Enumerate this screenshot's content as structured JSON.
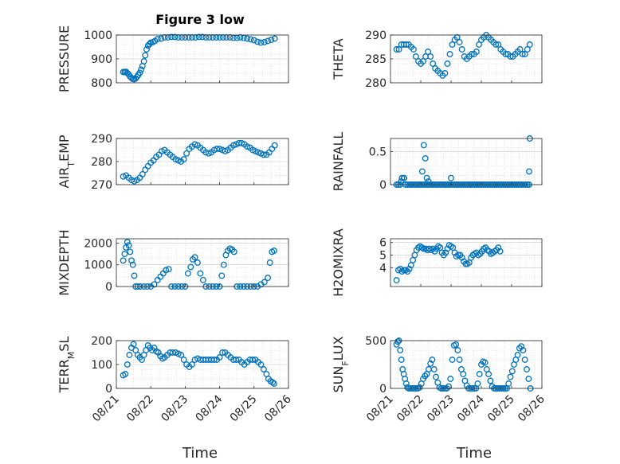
{
  "figure": {
    "title": "Figure 3 low"
  },
  "colors": {
    "marker": "#0072BD",
    "axis": "#262626",
    "grid": "#d9d9d9",
    "background": "#ffffff"
  },
  "chart_data": [
    {
      "type": "scatter",
      "id": "pressure",
      "ylabel": "PRESSURE",
      "ylim": [
        800,
        1000
      ],
      "yticks": [
        800,
        900,
        1000
      ],
      "xlim": [
        0,
        5
      ],
      "xticks": [
        0,
        1,
        2,
        3,
        4,
        5
      ],
      "xticklabels": [
        "08/21",
        "08/22",
        "08/23",
        "08/24",
        "08/25",
        "08/26"
      ],
      "show_xticklabels": false,
      "grid": true,
      "x": [
        0.2,
        0.24,
        0.28,
        0.32,
        0.36,
        0.4,
        0.44,
        0.48,
        0.52,
        0.56,
        0.6,
        0.64,
        0.68,
        0.72,
        0.76,
        0.8,
        0.84,
        0.88,
        0.92,
        0.96,
        1.0,
        1.06,
        1.12,
        1.2,
        1.3,
        1.4,
        1.5,
        1.6,
        1.7,
        1.8,
        1.9,
        2.0,
        2.1,
        2.2,
        2.3,
        2.4,
        2.5,
        2.6,
        2.7,
        2.8,
        2.9,
        3.0,
        3.1,
        3.2,
        3.3,
        3.4,
        3.5,
        3.6,
        3.7,
        3.8,
        3.9,
        4.0,
        4.1,
        4.2,
        4.3,
        4.4,
        4.5,
        4.6
      ],
      "y": [
        845,
        845,
        846,
        840,
        835,
        826,
        820,
        816,
        815,
        818,
        825,
        833,
        842,
        855,
        870,
        890,
        915,
        940,
        955,
        962,
        968,
        970,
        975,
        983,
        985,
        990,
        990,
        992,
        992,
        990,
        990,
        990,
        990,
        990,
        990,
        992,
        992,
        990,
        990,
        990,
        990,
        990,
        990,
        990,
        990,
        988,
        988,
        990,
        988,
        985,
        982,
        978,
        972,
        968,
        970,
        975,
        980,
        985
      ]
    },
    {
      "type": "scatter",
      "id": "theta",
      "ylabel": "THETA",
      "ylim": [
        280,
        290
      ],
      "yticks": [
        280,
        285,
        290
      ],
      "xlim": [
        0,
        5
      ],
      "xticks": [
        0,
        1,
        2,
        3,
        4,
        5
      ],
      "xticklabels": [
        "08/21",
        "08/22",
        "08/23",
        "08/24",
        "08/25",
        "08/26"
      ],
      "show_xticklabels": false,
      "grid": true,
      "x": [
        0.2,
        0.28,
        0.36,
        0.44,
        0.52,
        0.6,
        0.68,
        0.76,
        0.84,
        0.92,
        1.0,
        1.08,
        1.16,
        1.24,
        1.32,
        1.4,
        1.48,
        1.56,
        1.64,
        1.72,
        1.8,
        1.88,
        1.96,
        2.04,
        2.12,
        2.2,
        2.28,
        2.36,
        2.44,
        2.52,
        2.6,
        2.68,
        2.76,
        2.84,
        2.92,
        3.0,
        3.08,
        3.16,
        3.24,
        3.32,
        3.4,
        3.48,
        3.56,
        3.64,
        3.72,
        3.8,
        3.88,
        3.96,
        4.04,
        4.12,
        4.2,
        4.28,
        4.36,
        4.44,
        4.52,
        4.6
      ],
      "y": [
        287,
        287,
        288,
        288,
        288,
        288,
        287.5,
        287,
        285.5,
        284.5,
        284,
        284.5,
        285.5,
        286.5,
        285.5,
        284,
        283,
        282.5,
        282,
        281.5,
        282,
        284,
        286,
        288,
        289,
        289.5,
        288.5,
        287,
        285.5,
        285,
        285.5,
        286,
        286,
        286.5,
        288,
        289,
        289.5,
        290,
        289.5,
        289,
        288.5,
        288,
        288,
        287,
        286.5,
        286,
        286,
        285.5,
        285.5,
        286,
        286.5,
        287,
        286,
        286,
        287,
        288
      ]
    },
    {
      "type": "scatter",
      "id": "air_temp",
      "ylabel": "AIR_TEMP",
      "ylabel_main": "AIR",
      "ylabel_sub": "T",
      "ylabel_rest": "EMP",
      "ylim": [
        270,
        290
      ],
      "yticks": [
        270,
        280,
        290
      ],
      "xlim": [
        0,
        5
      ],
      "xticks": [
        0,
        1,
        2,
        3,
        4,
        5
      ],
      "xticklabels": [
        "08/21",
        "08/22",
        "08/23",
        "08/24",
        "08/25",
        "08/26"
      ],
      "show_xticklabels": false,
      "grid": true,
      "x": [
        0.2,
        0.28,
        0.36,
        0.44,
        0.52,
        0.6,
        0.68,
        0.76,
        0.84,
        0.92,
        1.0,
        1.08,
        1.16,
        1.24,
        1.32,
        1.4,
        1.48,
        1.56,
        1.64,
        1.72,
        1.8,
        1.88,
        1.96,
        2.04,
        2.12,
        2.2,
        2.28,
        2.36,
        2.44,
        2.52,
        2.6,
        2.68,
        2.76,
        2.84,
        2.92,
        3.0,
        3.08,
        3.16,
        3.24,
        3.32,
        3.4,
        3.48,
        3.56,
        3.64,
        3.72,
        3.8,
        3.88,
        3.96,
        4.04,
        4.12,
        4.2,
        4.28,
        4.36,
        4.44,
        4.52,
        4.6
      ],
      "y": [
        273.5,
        274,
        273,
        272,
        271.5,
        272,
        273,
        274.5,
        276.5,
        278,
        279.5,
        280.5,
        282,
        283,
        284.5,
        285,
        284,
        283,
        282,
        281,
        280.5,
        280,
        281,
        283.5,
        285.5,
        286.5,
        287.5,
        287,
        286,
        285,
        284,
        283.5,
        284,
        285,
        285.5,
        285.5,
        285,
        284.5,
        285,
        286,
        287,
        287.5,
        288,
        288,
        287.5,
        286.5,
        286,
        285,
        284.5,
        284,
        283.5,
        283,
        283,
        284,
        285.5,
        287
      ]
    },
    {
      "type": "scatter",
      "id": "rainfall",
      "ylabel": "RAINFALL",
      "ylim": [
        0,
        0.7
      ],
      "yticks": [
        0,
        0.5
      ],
      "yticklabels": [
        "0",
        "0.5"
      ],
      "xlim": [
        0,
        5
      ],
      "xticks": [
        0,
        1,
        2,
        3,
        4,
        5
      ],
      "xticklabels": [
        "08/21",
        "08/22",
        "08/23",
        "08/24",
        "08/25",
        "08/26"
      ],
      "show_xticklabels": false,
      "grid": true,
      "x": [
        0.2,
        0.26,
        0.32,
        0.38,
        0.44,
        0.5,
        0.56,
        0.62,
        0.68,
        0.74,
        0.8,
        0.86,
        0.92,
        0.98,
        1.04,
        1.1,
        1.16,
        1.22,
        1.28,
        1.34,
        1.4,
        1.46,
        1.52,
        1.58,
        1.64,
        1.7,
        1.76,
        1.82,
        1.88,
        1.94,
        2.0,
        2.06,
        2.12,
        2.18,
        2.24,
        2.3,
        2.36,
        2.42,
        2.48,
        2.54,
        2.6,
        2.66,
        2.72,
        2.78,
        2.84,
        2.9,
        2.96,
        3.02,
        3.08,
        3.14,
        3.2,
        3.26,
        3.32,
        3.38,
        3.44,
        3.5,
        3.56,
        3.62,
        3.68,
        3.74,
        3.8,
        3.86,
        3.92,
        3.98,
        4.04,
        4.1,
        4.16,
        4.22,
        4.28,
        4.34,
        4.4,
        4.46,
        4.52,
        4.58,
        4.6,
        4.58,
        1.05,
        1.1,
        1.15,
        1.2,
        0.35,
        0.45,
        2.0,
        1.25
      ],
      "y": [
        0,
        0,
        0,
        0.1,
        0.1,
        0,
        0,
        0,
        0,
        0,
        0,
        0,
        0,
        0,
        0,
        0,
        0,
        0,
        0,
        0,
        0,
        0,
        0,
        0,
        0,
        0,
        0,
        0,
        0,
        0,
        0,
        0,
        0,
        0,
        0,
        0,
        0,
        0,
        0,
        0,
        0,
        0,
        0,
        0,
        0,
        0,
        0,
        0,
        0,
        0,
        0,
        0,
        0,
        0,
        0,
        0,
        0,
        0,
        0,
        0,
        0,
        0,
        0,
        0,
        0,
        0,
        0,
        0,
        0,
        0,
        0,
        0,
        0,
        0,
        0.7,
        0.2,
        0.2,
        0.6,
        0.4,
        0.1,
        0.05,
        0.1,
        0.1,
        0.05
      ]
    },
    {
      "type": "scatter",
      "id": "mixdepth",
      "ylabel": "MIXDEPTH",
      "ylim": [
        0,
        2200
      ],
      "yticks": [
        0,
        1000,
        2000
      ],
      "xlim": [
        0,
        5
      ],
      "xticks": [
        0,
        1,
        2,
        3,
        4,
        5
      ],
      "xticklabels": [
        "08/21",
        "08/22",
        "08/23",
        "08/24",
        "08/25",
        "08/26"
      ],
      "show_xticklabels": false,
      "grid": true,
      "x": [
        0.2,
        0.24,
        0.28,
        0.32,
        0.36,
        0.4,
        0.44,
        0.48,
        0.52,
        0.56,
        0.62,
        0.7,
        0.8,
        0.9,
        1.0,
        1.1,
        1.2,
        1.28,
        1.36,
        1.44,
        1.52,
        1.6,
        1.7,
        1.8,
        1.9,
        2.0,
        2.08,
        2.16,
        2.22,
        2.28,
        2.36,
        2.44,
        2.52,
        2.6,
        2.7,
        2.8,
        2.9,
        3.0,
        3.06,
        3.12,
        3.18,
        3.24,
        3.3,
        3.36,
        3.42,
        3.5,
        3.6,
        3.7,
        3.8,
        3.9,
        4.0,
        4.1,
        4.2,
        4.3,
        4.4,
        4.46,
        4.52,
        4.58
      ],
      "y": [
        1200,
        1500,
        1800,
        2050,
        1900,
        1600,
        1200,
        1000,
        500,
        0,
        0,
        0,
        0,
        0,
        0,
        100,
        300,
        450,
        600,
        750,
        800,
        0,
        0,
        0,
        0,
        0,
        600,
        900,
        1250,
        1350,
        1100,
        600,
        300,
        0,
        0,
        0,
        0,
        0,
        500,
        1000,
        1450,
        1650,
        1750,
        1700,
        1600,
        0,
        0,
        0,
        0,
        0,
        0,
        0,
        100,
        200,
        400,
        1100,
        1600,
        1650
      ]
    },
    {
      "type": "scatter",
      "id": "h2omixra",
      "ylabel": "H2OMIXRA",
      "ylim": [
        2.5,
        6.3
      ],
      "yticks": [
        4,
        5,
        6
      ],
      "xlim": [
        0,
        5
      ],
      "xticks": [
        0,
        1,
        2,
        3,
        4,
        5
      ],
      "xticklabels": [
        "08/21",
        "08/22",
        "08/23",
        "08/24",
        "08/25",
        "08/26"
      ],
      "show_xticklabels": false,
      "grid": true,
      "x": [
        0.2,
        0.26,
        0.32,
        0.38,
        0.44,
        0.5,
        0.56,
        0.62,
        0.68,
        0.74,
        0.8,
        0.86,
        0.92,
        0.98,
        1.04,
        1.1,
        1.16,
        1.22,
        1.28,
        1.34,
        1.4,
        1.46,
        1.52,
        1.58,
        1.64,
        1.7,
        1.76,
        1.82,
        1.88,
        1.94,
        2.0,
        2.06,
        2.12,
        2.18,
        2.24,
        2.3,
        2.36,
        2.42,
        2.48,
        2.54,
        2.6,
        2.66,
        2.72,
        2.78,
        2.84,
        2.9,
        2.96,
        3.02,
        3.08,
        3.14,
        3.2,
        3.26,
        3.32,
        3.38,
        3.44,
        3.5,
        3.56,
        3.62
      ],
      "y": [
        3,
        3.8,
        3.9,
        3.7,
        3.8,
        3.8,
        3.7,
        3.9,
        4.2,
        4.6,
        5.0,
        5.4,
        5.6,
        5.7,
        5.6,
        5.5,
        5.5,
        5.4,
        5.5,
        5.4,
        5.5,
        5.3,
        5.5,
        5.7,
        5.6,
        5.2,
        5.0,
        5.2,
        5.5,
        5.8,
        5.7,
        5.6,
        5.2,
        4.9,
        5.0,
        5.0,
        4.8,
        4.5,
        4.3,
        4.3,
        4.4,
        4.8,
        5.0,
        5.1,
        5.2,
        5.0,
        5.1,
        5.3,
        5.5,
        5.6,
        5.4,
        5.3,
        5.1,
        5.2,
        5.3,
        5.4,
        5.6,
        5.3
      ]
    },
    {
      "type": "scatter",
      "id": "terr_msl",
      "ylabel": "TERR_MSL",
      "ylabel_main": "TERR",
      "ylabel_sub": "M",
      "ylabel_rest": "SL",
      "ylim": [
        0,
        200
      ],
      "yticks": [
        0,
        100,
        200
      ],
      "xlim": [
        0,
        5
      ],
      "xticks": [
        0,
        1,
        2,
        3,
        4,
        5
      ],
      "xticklabels": [
        "08/21",
        "08/22",
        "08/23",
        "08/24",
        "08/25",
        "08/26"
      ],
      "show_xticklabels": true,
      "grid": true,
      "x": [
        0.2,
        0.26,
        0.32,
        0.38,
        0.44,
        0.5,
        0.56,
        0.62,
        0.68,
        0.74,
        0.8,
        0.86,
        0.92,
        0.98,
        1.04,
        1.1,
        1.16,
        1.22,
        1.28,
        1.34,
        1.4,
        1.48,
        1.56,
        1.64,
        1.72,
        1.8,
        1.88,
        1.96,
        2.04,
        2.12,
        2.2,
        2.28,
        2.36,
        2.44,
        2.52,
        2.6,
        2.68,
        2.76,
        2.84,
        2.92,
        3.0,
        3.08,
        3.16,
        3.24,
        3.32,
        3.4,
        3.48,
        3.56,
        3.64,
        3.72,
        3.8,
        3.88,
        3.96,
        4.04,
        4.12,
        4.2,
        4.28,
        4.36,
        4.42,
        4.48,
        4.54,
        4.58
      ],
      "y": [
        55,
        60,
        100,
        140,
        170,
        185,
        160,
        140,
        130,
        120,
        140,
        160,
        180,
        170,
        160,
        170,
        155,
        150,
        135,
        125,
        130,
        140,
        150,
        150,
        150,
        145,
        140,
        120,
        100,
        90,
        100,
        120,
        125,
        120,
        120,
        120,
        120,
        120,
        120,
        120,
        130,
        150,
        150,
        140,
        130,
        120,
        120,
        120,
        110,
        100,
        110,
        120,
        120,
        120,
        110,
        100,
        80,
        60,
        40,
        30,
        25,
        20
      ]
    },
    {
      "type": "scatter",
      "id": "sun_flux",
      "ylabel": "SUN_FLUX",
      "ylabel_main": "SUN",
      "ylabel_sub": "F",
      "ylabel_rest": "LUX",
      "ylim": [
        0,
        500
      ],
      "yticks": [
        0,
        500
      ],
      "xlim": [
        0,
        5
      ],
      "xticks": [
        0,
        1,
        2,
        3,
        4,
        5
      ],
      "xticklabels": [
        "08/21",
        "08/22",
        "08/23",
        "08/24",
        "08/25",
        "08/26"
      ],
      "show_xticklabels": true,
      "grid": true,
      "x": [
        0.2,
        0.24,
        0.28,
        0.32,
        0.36,
        0.4,
        0.44,
        0.48,
        0.52,
        0.56,
        0.6,
        0.66,
        0.72,
        0.78,
        0.84,
        0.9,
        0.96,
        1.02,
        1.08,
        1.14,
        1.2,
        1.26,
        1.32,
        1.38,
        1.44,
        1.5,
        1.56,
        1.62,
        1.68,
        1.74,
        1.8,
        1.86,
        1.92,
        1.98,
        2.04,
        2.1,
        2.16,
        2.22,
        2.28,
        2.34,
        2.4,
        2.46,
        2.52,
        2.58,
        2.64,
        2.7,
        2.76,
        2.82,
        2.88,
        2.94,
        3.0,
        3.06,
        3.12,
        3.18,
        3.24,
        3.3,
        3.36,
        3.42,
        3.48,
        3.54,
        3.6,
        3.66,
        3.72,
        3.78,
        3.84,
        3.9,
        3.96,
        4.02,
        4.08,
        4.14,
        4.2,
        4.26,
        4.32,
        4.38,
        4.44,
        4.5,
        4.56,
        4.62
      ],
      "y": [
        460,
        490,
        500,
        400,
        300,
        200,
        150,
        100,
        50,
        10,
        0,
        0,
        0,
        0,
        0,
        0,
        10,
        50,
        100,
        130,
        150,
        200,
        260,
        300,
        200,
        120,
        60,
        10,
        0,
        0,
        0,
        0,
        20,
        100,
        300,
        450,
        460,
        400,
        300,
        200,
        150,
        80,
        30,
        0,
        0,
        0,
        0,
        0,
        50,
        150,
        250,
        280,
        270,
        200,
        150,
        80,
        20,
        0,
        0,
        0,
        0,
        0,
        0,
        0,
        0,
        50,
        120,
        180,
        250,
        300,
        350,
        420,
        440,
        400,
        300,
        200,
        100,
        0
      ]
    }
  ],
  "xlabel": "Time"
}
